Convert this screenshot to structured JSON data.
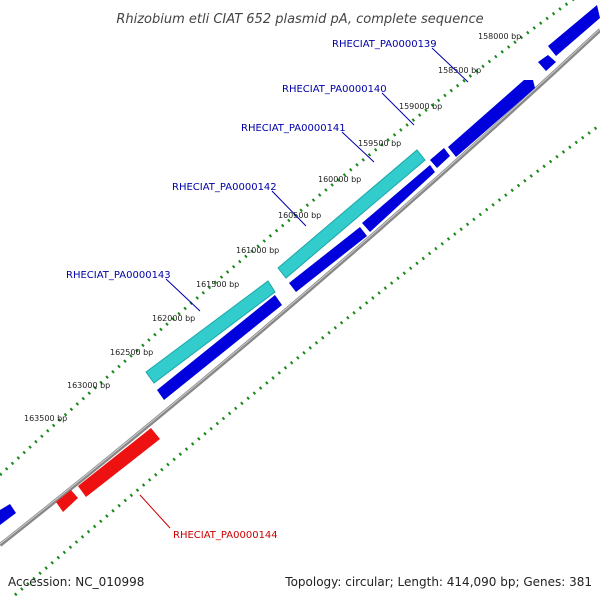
{
  "map": {
    "title": "Rhizobium etli CIAT 652 plasmid pA, complete sequence",
    "accession": "Accession: NC_010998",
    "summary": "Topology: circular; Length: 414,090 bp; Genes: 381",
    "colors": {
      "background": "#ffffff",
      "backbone": "#777777",
      "forward_gene": "#0000dd",
      "highlighted_gene": "#33cccc",
      "reverse_gene": "#ee1111",
      "outer_ticks": "#1a8a1a",
      "label_blue": "#0000aa",
      "label_red": "#cc0000"
    },
    "ticks": [
      "158000 bp",
      "158500 bp",
      "159000 bp",
      "159500 bp",
      "160000 bp",
      "160500 bp",
      "161000 bp",
      "161500 bp",
      "162000 bp",
      "162500 bp",
      "163000 bp",
      "163500 bp"
    ],
    "gene_labels": [
      {
        "text": "RHECIAT_PA0000139",
        "color": "blue"
      },
      {
        "text": "RHECIAT_PA0000140",
        "color": "blue"
      },
      {
        "text": "RHECIAT_PA0000141",
        "color": "blue"
      },
      {
        "text": "RHECIAT_PA0000142",
        "color": "blue"
      },
      {
        "text": "RHECIAT_PA0000143",
        "color": "blue"
      },
      {
        "text": "RHECIAT_PA0000144",
        "color": "red"
      }
    ]
  }
}
